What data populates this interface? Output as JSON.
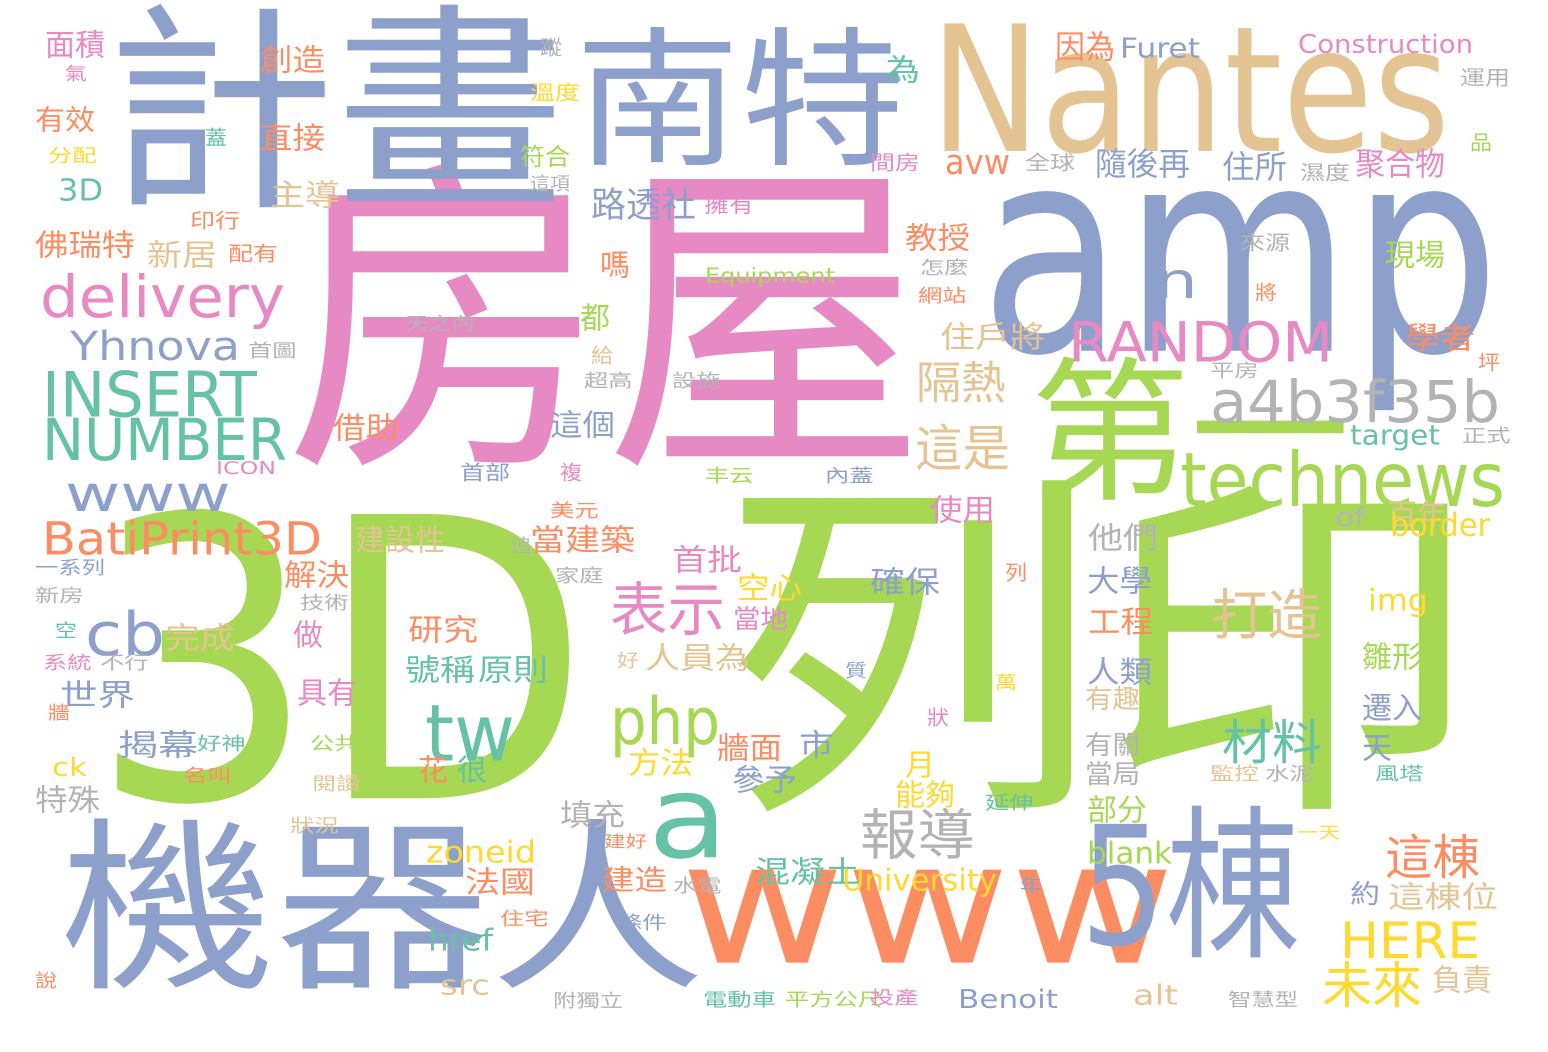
{
  "words": [
    {
      "text": "房屋",
      "color": "#e78ac3"
    },
    {
      "text": "3D",
      "color": "#a6d854"
    },
    {
      "text": "列印",
      "color": "#a6d854"
    },
    {
      "text": "amp",
      "color": "#8da0cb"
    },
    {
      "text": "計畫",
      "color": "#8da0cb"
    },
    {
      "text": "Nantes",
      "color": "#e5c494"
    },
    {
      "text": "南特",
      "color": "#8da0cb"
    },
    {
      "text": "第一",
      "color": "#a6d854"
    },
    {
      "text": "機器人",
      "color": "#8da0cb"
    },
    {
      "text": "www",
      "color": "#fc8d62"
    },
    {
      "text": "5棟",
      "color": "#8da0cb"
    },
    {
      "text": "technews",
      "color": "#a6d854"
    },
    {
      "text": "a4b3f35b",
      "color": "#b3b3b3"
    },
    {
      "text": "delivery",
      "color": "#e78ac3"
    },
    {
      "text": "RANDOM",
      "color": "#e78ac3"
    },
    {
      "text": "INSERT",
      "color": "#66c2a5"
    },
    {
      "text": "NUMBER",
      "color": "#66c2a5"
    },
    {
      "text": "www",
      "color": "#8da0cb"
    },
    {
      "text": "a",
      "color": "#66c2a5"
    },
    {
      "text": "tw",
      "color": "#66c2a5"
    },
    {
      "text": "php",
      "color": "#a6d854"
    },
    {
      "text": "cb",
      "color": "#8da0cb"
    },
    {
      "text": "n",
      "color": "#8da0cb"
    },
    {
      "text": "Yhnova",
      "color": "#8da0cb"
    },
    {
      "text": "BatiPrint3D",
      "color": "#fc8d62"
    },
    {
      "text": "表示",
      "color": "#e78ac3"
    },
    {
      "text": "打造",
      "color": "#e5c494"
    },
    {
      "text": "報導",
      "color": "#b3b3b3"
    },
    {
      "text": "材料",
      "color": "#66c2a5"
    },
    {
      "text": "這是",
      "color": "#e5c494"
    },
    {
      "text": "隔熱",
      "color": "#e5c494"
    },
    {
      "text": "HERE",
      "color": "#ffd92f"
    },
    {
      "text": "未來",
      "color": "#ffd92f"
    },
    {
      "text": "這棟",
      "color": "#fc8d62"
    },
    {
      "text": "路透社",
      "color": "#8da0cb"
    },
    {
      "text": "avw",
      "color": "#fc8d62"
    },
    {
      "text": "隨後再",
      "color": "#8da0cb"
    },
    {
      "text": "住所",
      "color": "#8da0cb"
    },
    {
      "text": "聚合物",
      "color": "#e78ac3"
    },
    {
      "text": "因為",
      "color": "#fc8d62"
    },
    {
      "text": "Furet",
      "color": "#8da0cb"
    },
    {
      "text": "Construction",
      "color": "#e78ac3"
    },
    {
      "text": "面積",
      "color": "#e78ac3"
    },
    {
      "text": "創造",
      "color": "#fc8d62"
    },
    {
      "text": "有效",
      "color": "#fc8d62"
    },
    {
      "text": "直接",
      "color": "#fc8d62"
    },
    {
      "text": "主導",
      "color": "#e5c494"
    },
    {
      "text": "3D",
      "color": "#66c2a5"
    },
    {
      "text": "新居",
      "color": "#e5c494"
    },
    {
      "text": "佛瑞特",
      "color": "#fc8d62"
    },
    {
      "text": "教授",
      "color": "#fc8d62"
    },
    {
      "text": "住戶將",
      "color": "#e5c494"
    },
    {
      "text": "首批",
      "color": "#e78ac3"
    },
    {
      "text": "當建築",
      "color": "#fc8d62"
    },
    {
      "text": "空心",
      "color": "#ffd92f"
    },
    {
      "text": "確保",
      "color": "#8da0cb"
    },
    {
      "text": "使用",
      "color": "#e78ac3"
    },
    {
      "text": "他們",
      "color": "#b3b3b3"
    },
    {
      "text": "大學",
      "color": "#8da0cb"
    },
    {
      "text": "工程",
      "color": "#fc8d62"
    },
    {
      "text": "人類",
      "color": "#8da0cb"
    },
    {
      "text": "百年",
      "color": "#e5c494"
    },
    {
      "text": "border",
      "color": "#ffd92f"
    },
    {
      "text": "target",
      "color": "#66c2a5"
    },
    {
      "text": "img",
      "color": "#ffd92f"
    },
    {
      "text": "雛形",
      "color": "#a6d854"
    },
    {
      "text": "遷入",
      "color": "#8da0cb"
    },
    {
      "text": "天",
      "color": "#8da0cb"
    },
    {
      "text": "學者",
      "color": "#fc8d62"
    },
    {
      "text": "現場",
      "color": "#a6d854"
    },
    {
      "text": "世界",
      "color": "#8da0cb"
    },
    {
      "text": "揭幕",
      "color": "#8da0cb"
    },
    {
      "text": "ck",
      "color": "#ffd92f"
    },
    {
      "text": "特殊",
      "color": "#b3b3b3"
    },
    {
      "text": "研究",
      "color": "#fc8d62"
    },
    {
      "text": "號稱",
      "color": "#66c2a5"
    },
    {
      "text": "原則",
      "color": "#66c2a5"
    },
    {
      "text": "人員為",
      "color": "#e5c494"
    },
    {
      "text": "牆面",
      "color": "#fc8d62"
    },
    {
      "text": "市",
      "color": "#8da0cb"
    },
    {
      "text": "方法",
      "color": "#ffd92f"
    },
    {
      "text": "花",
      "color": "#fc8d62"
    },
    {
      "text": "很",
      "color": "#66c2a5"
    },
    {
      "text": "月",
      "color": "#ffd92f"
    },
    {
      "text": "參予",
      "color": "#8da0cb"
    },
    {
      "text": "能夠",
      "color": "#ffd92f"
    },
    {
      "text": "zoneid",
      "color": "#ffd92f"
    },
    {
      "text": "法國",
      "color": "#fc8d62"
    },
    {
      "text": "混凝土",
      "color": "#66c2a5"
    },
    {
      "text": "University",
      "color": "#ffd92f"
    },
    {
      "text": "blank",
      "color": "#a6d854"
    },
    {
      "text": "部分",
      "color": "#a6d854"
    },
    {
      "text": "這棟位",
      "color": "#e5c494"
    },
    {
      "text": "約",
      "color": "#8da0cb"
    },
    {
      "text": "負責",
      "color": "#e5c494"
    },
    {
      "text": "href",
      "color": "#66c2a5"
    },
    {
      "text": "src",
      "color": "#e5c494"
    },
    {
      "text": "alt",
      "color": "#e5c494"
    },
    {
      "text": "Benoit",
      "color": "#8da0cb"
    },
    {
      "text": "建造",
      "color": "#fc8d62"
    },
    {
      "text": "填充",
      "color": "#b3b3b3"
    },
    {
      "text": "完成",
      "color": "#e5c494"
    },
    {
      "text": "做",
      "color": "#e78ac3"
    },
    {
      "text": "具有",
      "color": "#e78ac3"
    },
    {
      "text": "解決",
      "color": "#fc8d62"
    },
    {
      "text": "建設性",
      "color": "#e5c494"
    },
    {
      "text": "借助",
      "color": "#fc8d62"
    },
    {
      "text": "這個",
      "color": "#8da0cb"
    },
    {
      "text": "都",
      "color": "#a6d854"
    },
    {
      "text": "嗎",
      "color": "#fc8d62"
    },
    {
      "text": "有關",
      "color": "#b3b3b3"
    },
    {
      "text": "當局",
      "color": "#b3b3b3"
    },
    {
      "text": "有趣",
      "color": "#e5c494"
    },
    {
      "text": "當地",
      "color": "#e78ac3"
    },
    {
      "text": "of",
      "color": "#b3b3b3"
    },
    {
      "text": "Equipment",
      "color": "#a6d854"
    },
    {
      "text": "為",
      "color": "#66c2a5"
    },
    {
      "text": "符合",
      "color": "#a6d854"
    },
    {
      "text": "這項",
      "color": "#b3b3b3"
    },
    {
      "text": "溫度",
      "color": "#ffd92f"
    },
    {
      "text": "蹤",
      "color": "#b3b3b3"
    },
    {
      "text": "擁有",
      "color": "#e78ac3"
    },
    {
      "text": "間房",
      "color": "#e78ac3"
    },
    {
      "text": "全球",
      "color": "#b3b3b3"
    },
    {
      "text": "濕度",
      "color": "#b3b3b3"
    },
    {
      "text": "運用",
      "color": "#b3b3b3"
    },
    {
      "text": "品",
      "color": "#a6d854"
    },
    {
      "text": "蓋",
      "color": "#66c2a5"
    },
    {
      "text": "印行",
      "color": "#fc8d62"
    },
    {
      "text": "配有",
      "color": "#fc8d62"
    },
    {
      "text": "來源",
      "color": "#b3b3b3"
    },
    {
      "text": "怎麼",
      "color": "#b3b3b3"
    },
    {
      "text": "網站",
      "color": "#fc8d62"
    },
    {
      "text": "將",
      "color": "#fc8d62"
    },
    {
      "text": "坪",
      "color": "#fc8d62"
    },
    {
      "text": "天之內",
      "color": "#b3b3b3"
    },
    {
      "text": "首圖",
      "color": "#b3b3b3"
    },
    {
      "text": "給",
      "color": "#e5c494"
    },
    {
      "text": "超高",
      "color": "#b3b3b3"
    },
    {
      "text": "設施",
      "color": "#b3b3b3"
    },
    {
      "text": "平房",
      "color": "#b3b3b3"
    },
    {
      "text": "正式",
      "color": "#b3b3b3"
    },
    {
      "text": "ICON",
      "color": "#e78ac3"
    },
    {
      "text": "首部",
      "color": "#8da0cb"
    },
    {
      "text": "複",
      "color": "#e78ac3"
    },
    {
      "text": "丰云",
      "color": "#a6d854"
    },
    {
      "text": "內蓋",
      "color": "#8da0cb"
    },
    {
      "text": "美元",
      "color": "#fc8d62"
    },
    {
      "text": "追",
      "color": "#b3b3b3"
    },
    {
      "text": "家庭",
      "color": "#b3b3b3"
    },
    {
      "text": "列",
      "color": "#fc8d62"
    },
    {
      "text": "一系列",
      "color": "#8da0cb"
    },
    {
      "text": "新房",
      "color": "#b3b3b3"
    },
    {
      "text": "技術",
      "color": "#b3b3b3"
    },
    {
      "text": "空",
      "color": "#66c2a5"
    },
    {
      "text": "系統",
      "color": "#e78ac3"
    },
    {
      "text": "不行",
      "color": "#b3b3b3"
    },
    {
      "text": "好",
      "color": "#e5c494"
    },
    {
      "text": "質",
      "color": "#8da0cb"
    },
    {
      "text": "萬",
      "color": "#ffd92f"
    },
    {
      "text": "狀",
      "color": "#e78ac3"
    },
    {
      "text": "牆",
      "color": "#fc8d62"
    },
    {
      "text": "好神",
      "color": "#66c2a5"
    },
    {
      "text": "名叫",
      "color": "#fc8d62"
    },
    {
      "text": "公共",
      "color": "#a6d854"
    },
    {
      "text": "閱讀",
      "color": "#e5c494"
    },
    {
      "text": "延伸",
      "color": "#66c2a5"
    },
    {
      "text": "監控",
      "color": "#e5c494"
    },
    {
      "text": "水泥",
      "color": "#b3b3b3"
    },
    {
      "text": "風塔",
      "color": "#66c2a5"
    },
    {
      "text": "狀況",
      "color": "#e5c494"
    },
    {
      "text": "建好",
      "color": "#fc8d62"
    },
    {
      "text": "一天",
      "color": "#ffd92f"
    },
    {
      "text": "水電",
      "color": "#b3b3b3"
    },
    {
      "text": "年",
      "color": "#8da0cb"
    },
    {
      "text": "住宅",
      "color": "#fc8d62"
    },
    {
      "text": "條件",
      "color": "#8da0cb"
    },
    {
      "text": "說",
      "color": "#fc8d62"
    },
    {
      "text": "附獨立",
      "color": "#b3b3b3"
    },
    {
      "text": "電動車",
      "color": "#66c2a5"
    },
    {
      "text": "平方公尺",
      "color": "#a6d854"
    },
    {
      "text": "投產",
      "color": "#e78ac3"
    },
    {
      "text": "智慧型",
      "color": "#b3b3b3"
    },
    {
      "text": "氣",
      "color": "#e78ac3"
    },
    {
      "text": "分配",
      "color": "#ffd92f"
    }
  ]
}
